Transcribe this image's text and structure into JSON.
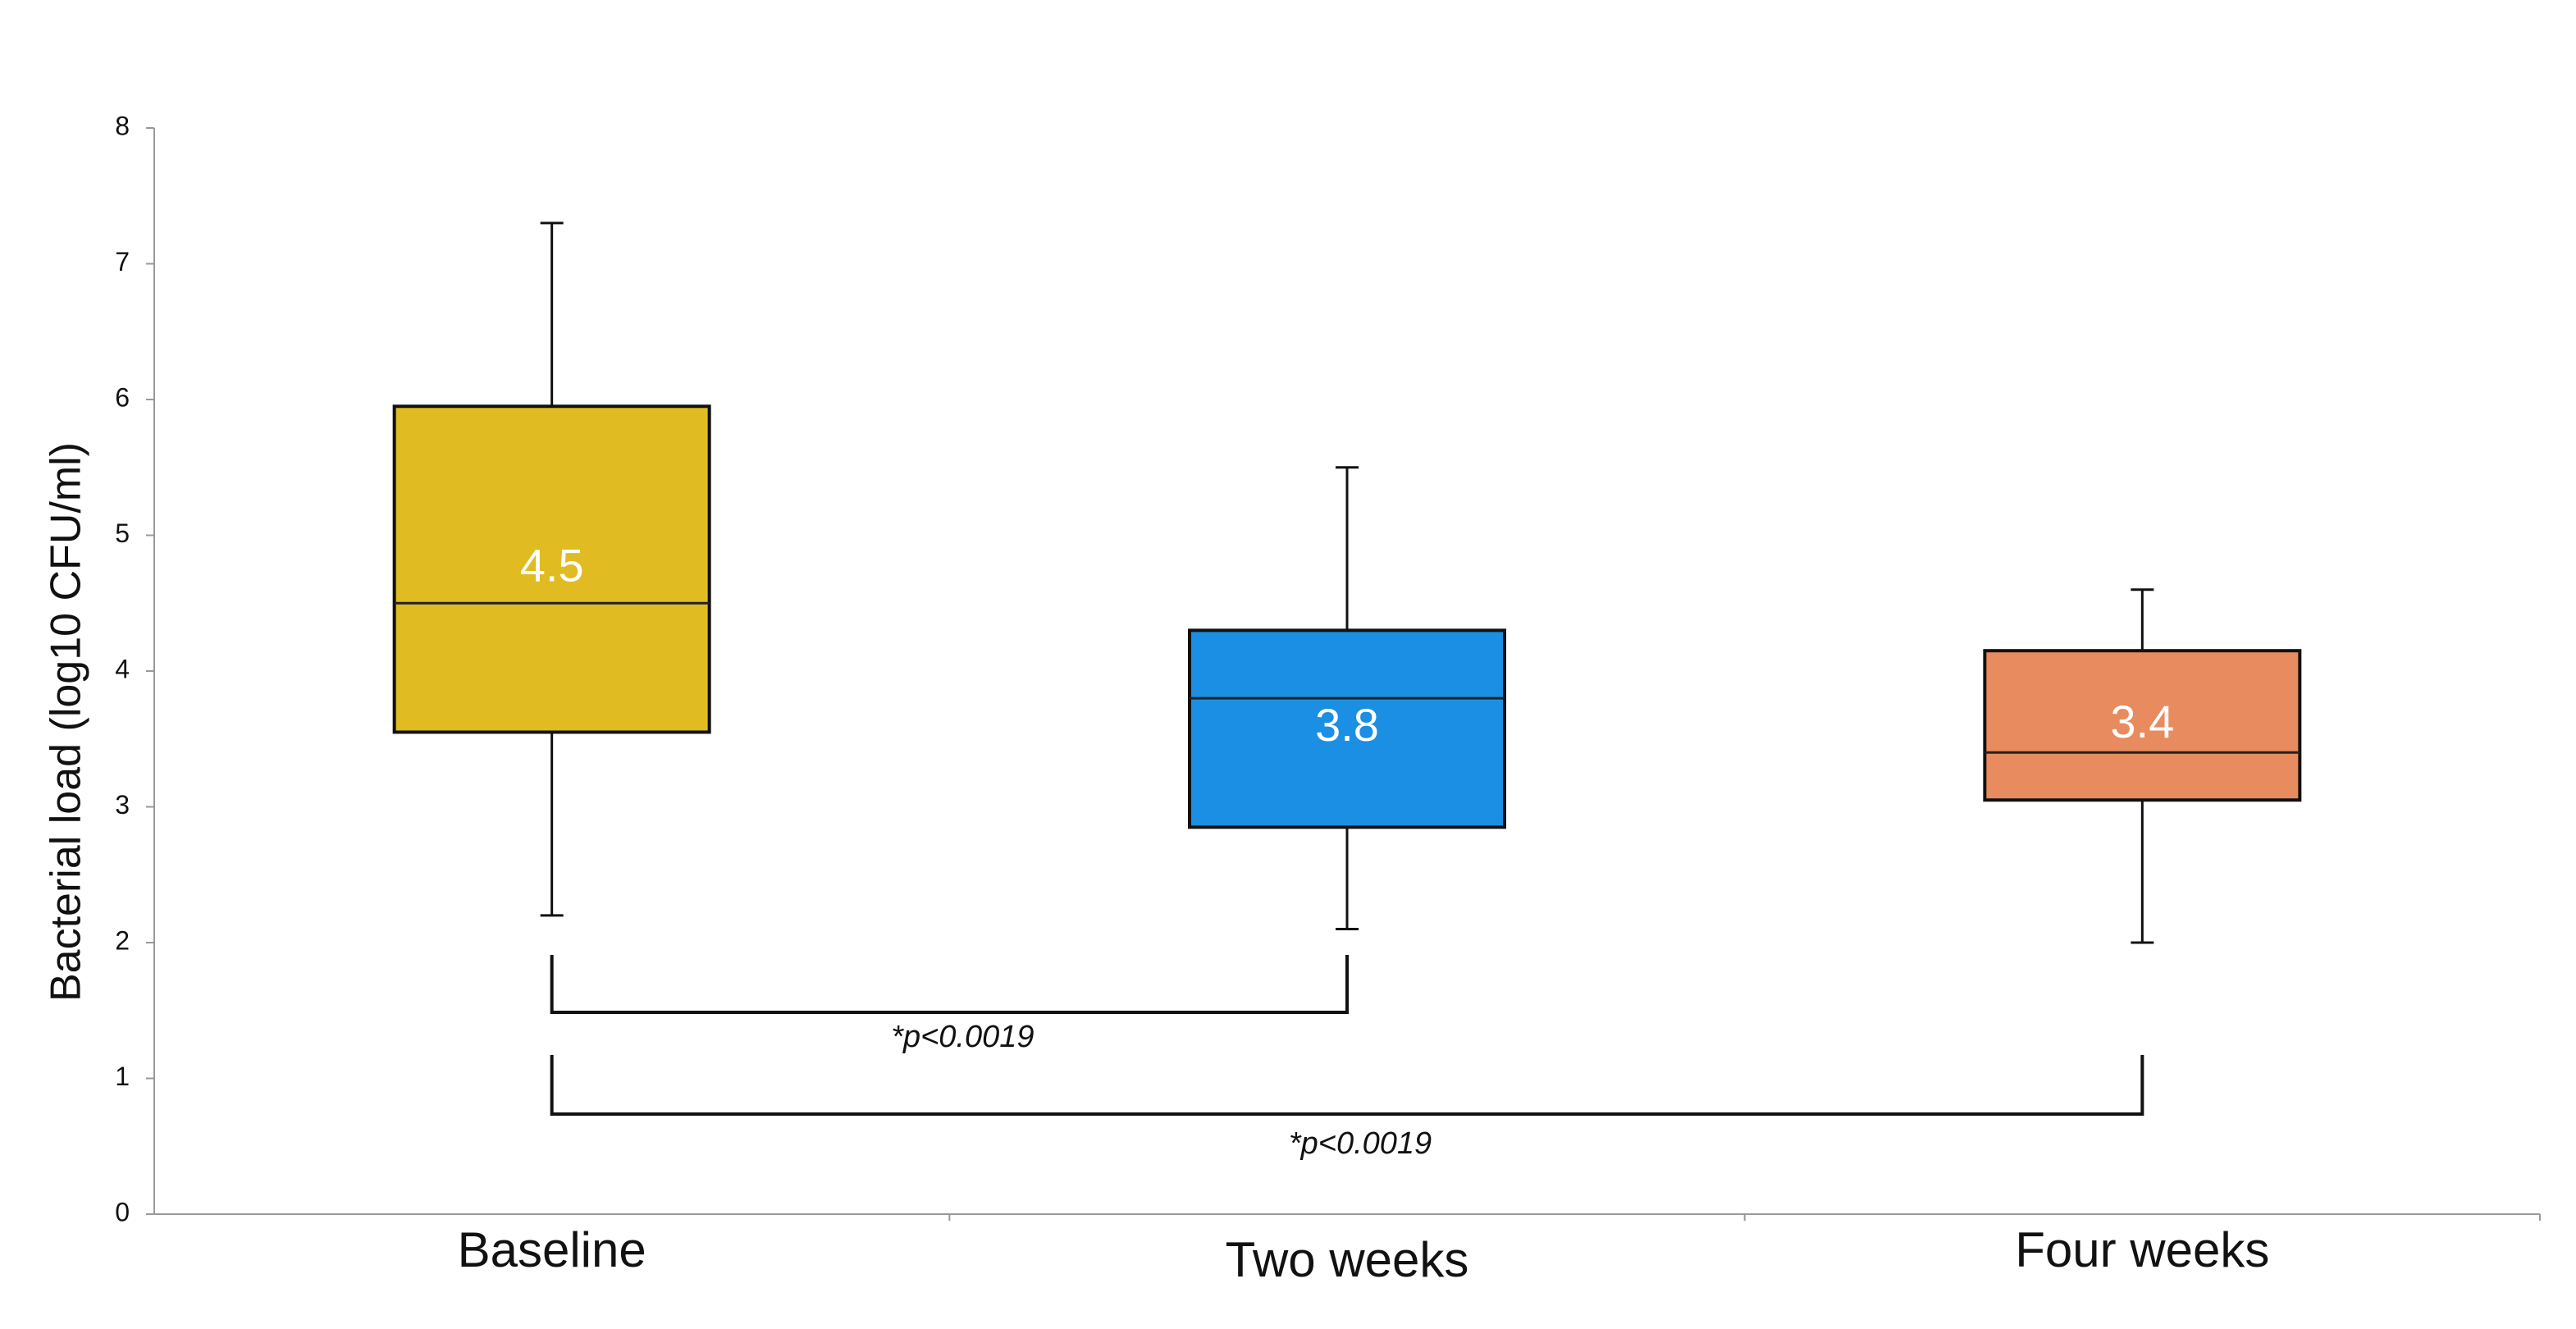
{
  "chart_data": {
    "type": "box",
    "y_label": "Bacterial load (log10 CFU/ml)",
    "categories": [
      "Baseline",
      "Two weeks",
      "Four weeks"
    ],
    "boxes": [
      {
        "min": 2.2,
        "q1": 3.55,
        "median": 4.5,
        "q3": 5.95,
        "max": 7.3,
        "color": "#e0bc22"
      },
      {
        "min": 2.1,
        "q1": 2.85,
        "median": 3.8,
        "q3": 4.3,
        "max": 5.5,
        "color": "#1a8fe3"
      },
      {
        "min": 2.0,
        "q1": 3.05,
        "median": 3.4,
        "q3": 4.15,
        "max": 4.6,
        "color": "#e88b5e"
      }
    ],
    "annotations": [
      "*p<0.0019",
      "*p<0.0019"
    ],
    "ylim": [
      0,
      8
    ],
    "yticks": [
      0,
      1,
      2,
      3,
      4,
      5,
      6,
      7,
      8
    ]
  }
}
